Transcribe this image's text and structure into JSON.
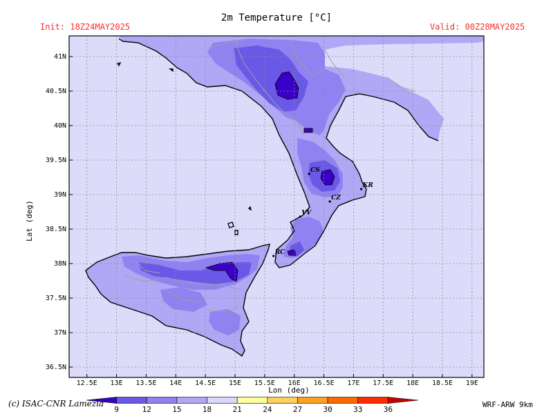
{
  "header": {
    "title": "2m Temperature [°C]",
    "init": "Init: 18Z24MAY2025",
    "valid": "Valid: 00Z28MAY2025"
  },
  "footer": {
    "copyright": "(c) ISAC-CNR Lamezia",
    "model": "WRF-ARW 9km"
  },
  "map": {
    "type": "temperature-contour-map",
    "variable": "2m Temperature",
    "xlabel": "Lon (deg)",
    "ylabel": "Lat (deg)",
    "lon_range": [
      12.2,
      19.2
    ],
    "lat_range": [
      36.35,
      41.3
    ],
    "lon_ticks": [
      "12.5E",
      "13E",
      "13.5E",
      "14E",
      "14.5E",
      "15E",
      "15.5E",
      "16E",
      "16.5E",
      "17E",
      "17.5E",
      "18E",
      "18.5E",
      "19E"
    ],
    "lon_tick_values": [
      12.5,
      13,
      13.5,
      14,
      14.5,
      15,
      15.5,
      16,
      16.5,
      17,
      17.5,
      18,
      18.5,
      19
    ],
    "lat_ticks": [
      "41N",
      "40.5N",
      "40N",
      "39.5N",
      "39N",
      "38.5N",
      "38N",
      "37.5N",
      "37N",
      "36.5N"
    ],
    "lat_tick_values": [
      41,
      40.5,
      40,
      39.5,
      39,
      38.5,
      38,
      37.5,
      37,
      36.5
    ],
    "grid": true,
    "cities": [
      {
        "code": "CS",
        "lon": 16.25,
        "lat": 39.3
      },
      {
        "code": "KR",
        "lon": 17.13,
        "lat": 39.08
      },
      {
        "code": "CZ",
        "lon": 16.6,
        "lat": 38.9
      },
      {
        "code": "VV",
        "lon": 16.1,
        "lat": 38.68
      },
      {
        "code": "RC",
        "lon": 15.65,
        "lat": 38.11
      }
    ]
  },
  "colorbar": {
    "labels": [
      "9",
      "12",
      "15",
      "18",
      "21",
      "24",
      "27",
      "30",
      "33",
      "36"
    ],
    "colors": [
      "#3a00c8",
      "#6a58e6",
      "#9082f0",
      "#b0a8f4",
      "#d8d8fa",
      "#ffffa0",
      "#ffd060",
      "#ffa020",
      "#ff6a00",
      "#ff2a00",
      "#c80000"
    ],
    "units": "°C"
  },
  "colors": {
    "background_sea": "#dcdcfa",
    "level_15_18": "#b0a8f4",
    "level_12_15": "#9082f0",
    "level_9_12": "#6a58e6",
    "level_lt9": "#3a00c8",
    "header_red": "#ff2a2a"
  }
}
